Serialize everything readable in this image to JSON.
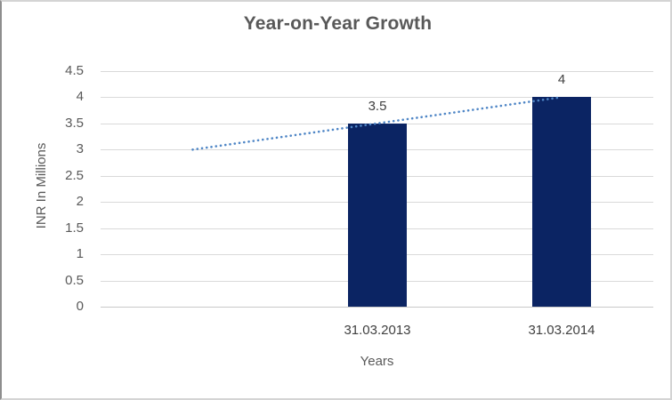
{
  "chart_data": {
    "type": "bar",
    "title": "Year-on-Year Growth",
    "xlabel": "Years",
    "ylabel": "INR In Millions",
    "categories": [
      "",
      "31.03.2013",
      "31.03.2014"
    ],
    "series": [
      {
        "name": "growth-bars",
        "type": "bar",
        "values": [
          null,
          3.5,
          4
        ],
        "data_labels": [
          "",
          "3.5",
          "4"
        ],
        "color": "#0b2463"
      },
      {
        "name": "trendline",
        "type": "dotted-line",
        "values": [
          3,
          3.5,
          4
        ],
        "color": "#4f86c6"
      }
    ],
    "ylim": [
      0,
      4.5
    ],
    "ytick_step": 0.5,
    "ytick_labels": [
      "4.5",
      "4",
      "3.5",
      "3",
      "2.5",
      "2",
      "1.5",
      "1",
      "0.5",
      "0"
    ],
    "grid": true,
    "gridline_color": "#d9d9d9",
    "legend": "none",
    "bar_color": "#0b2463",
    "trend_color": "#4f86c6",
    "title_color": "#595959"
  }
}
